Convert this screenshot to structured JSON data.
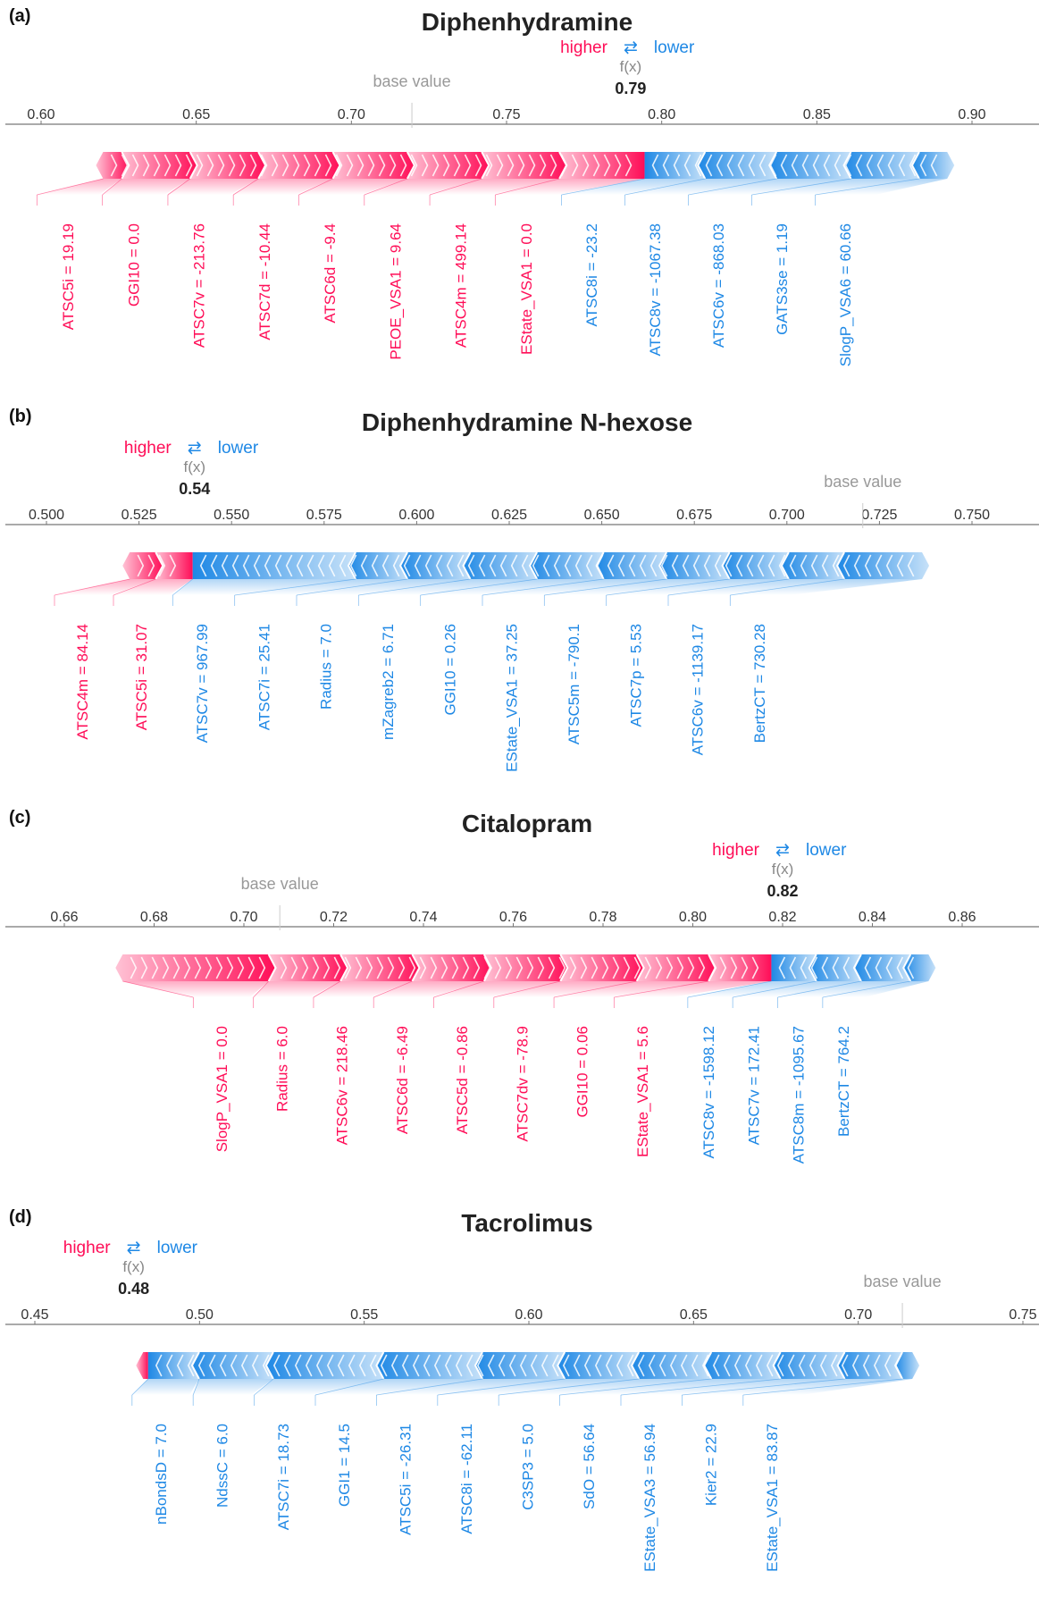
{
  "colors": {
    "pos": "#ff0d57",
    "neg": "#1e88e5",
    "pos_light": "#ffc3d5",
    "neg_light": "#d1e6fa"
  },
  "legend": {
    "higher": "higher",
    "arrow": "⇄",
    "lower": "lower",
    "fx": "f(x)",
    "base": "base value"
  },
  "chart_data": [
    {
      "type": "force",
      "panel": "(a)",
      "title": "Diphenhydramine",
      "fx": 0.79,
      "fx_label": "0.79",
      "base_value": 0.7195,
      "ticks": [
        "0.60",
        "0.65",
        "0.70",
        "0.75",
        "0.80",
        "0.85",
        "0.90"
      ],
      "xlim": [
        0.6,
        0.9
      ],
      "positive": [
        {
          "label": "EState_VSA1 = 0.0",
          "lo": 0.767,
          "hi": 0.7945
        },
        {
          "label": "ATSC4m = 499.14",
          "lo": 0.742,
          "hi": 0.767
        },
        {
          "label": "PEOE_VSA1 = 9.64",
          "lo": 0.718,
          "hi": 0.742
        },
        {
          "label": "ATSC6d = -9.4",
          "lo": 0.694,
          "hi": 0.718
        },
        {
          "label": "ATSC7d = -10.44",
          "lo": 0.67,
          "hi": 0.694
        },
        {
          "label": "ATSC7v = -213.76",
          "lo": 0.648,
          "hi": 0.67
        },
        {
          "label": "GGI10 = 0.0",
          "lo": 0.626,
          "hi": 0.648
        },
        {
          "label": "ATSC5i = 19.19",
          "lo": 0.62,
          "hi": 0.626
        }
      ],
      "negative": [
        {
          "label": "ATSC8i = -23.2",
          "lo": 0.7945,
          "hi": 0.814
        },
        {
          "label": "ATSC8v = -1067.38",
          "lo": 0.814,
          "hi": 0.837
        },
        {
          "label": "ATSC6v = -868.03",
          "lo": 0.837,
          "hi": 0.861
        },
        {
          "label": "GATS3se = 1.19",
          "lo": 0.861,
          "hi": 0.883
        },
        {
          "label": "SlogP_VSA6 = 60.66",
          "lo": 0.883,
          "hi": 0.892
        }
      ]
    },
    {
      "type": "force",
      "panel": "(b)",
      "title": "Diphenhydramine N-hexose",
      "fx": 0.54,
      "fx_label": "0.54",
      "base_value": 0.7205,
      "ticks": [
        "0.500",
        "0.525",
        "0.550",
        "0.575",
        "0.600",
        "0.625",
        "0.650",
        "0.675",
        "0.700",
        "0.725",
        "0.750"
      ],
      "xlim": [
        0.5,
        0.75
      ],
      "positive": [
        {
          "label": "ATSC5i = 31.07",
          "lo": 0.5295,
          "hi": 0.5395
        },
        {
          "label": "ATSC4m = 84.14",
          "lo": 0.5225,
          "hi": 0.5295
        }
      ],
      "negative": [
        {
          "label": "ATSC7v = 967.99",
          "lo": 0.5395,
          "hi": 0.5835
        },
        {
          "label": "ATSC7i = 25.41",
          "lo": 0.5835,
          "hi": 0.5975
        },
        {
          "label": "Radius = 7.0",
          "lo": 0.5975,
          "hi": 0.6145
        },
        {
          "label": "mZagreb2 = 6.71",
          "lo": 0.6145,
          "hi": 0.6325
        },
        {
          "label": "GGI10 = 0.26",
          "lo": 0.6325,
          "hi": 0.6505
        },
        {
          "label": "EState_VSA1 = 37.25",
          "lo": 0.6505,
          "hi": 0.6675
        },
        {
          "label": "ATSC5m = -790.1",
          "lo": 0.6675,
          "hi": 0.6845
        },
        {
          "label": "ATSC7p = 5.53",
          "lo": 0.6845,
          "hi": 0.7005
        },
        {
          "label": "ATSC6v = -1139.17",
          "lo": 0.7005,
          "hi": 0.7155
        },
        {
          "label": "BertzCT = 730.28",
          "lo": 0.7155,
          "hi": 0.7365
        }
      ]
    },
    {
      "type": "force",
      "panel": "(c)",
      "title": "Citalopram",
      "fx": 0.82,
      "fx_label": "0.82",
      "base_value": 0.708,
      "ticks": [
        "0.66",
        "0.68",
        "0.70",
        "0.72",
        "0.74",
        "0.76",
        "0.78",
        "0.80",
        "0.82",
        "0.84",
        "0.86"
      ],
      "xlim": [
        0.66,
        0.86
      ],
      "positive": [
        {
          "label": "EState_VSA1 = 5.6",
          "lo": 0.8035,
          "hi": 0.8175
        },
        {
          "label": "GGI10 = 0.06",
          "lo": 0.7875,
          "hi": 0.8035
        },
        {
          "label": "ATSC7dv = -78.9",
          "lo": 0.7705,
          "hi": 0.7875
        },
        {
          "label": "ATSC5d = -0.86",
          "lo": 0.7535,
          "hi": 0.7705
        },
        {
          "label": "ATSC6d = -6.49",
          "lo": 0.7375,
          "hi": 0.7535
        },
        {
          "label": "ATSC6v = 218.46",
          "lo": 0.7215,
          "hi": 0.7375
        },
        {
          "label": "Radius = 6.0",
          "lo": 0.7055,
          "hi": 0.7215
        },
        {
          "label": "SlogP_VSA1 = 0.0",
          "lo": 0.673,
          "hi": 0.7055
        }
      ],
      "negative": [
        {
          "label": "ATSC8v = -1598.12",
          "lo": 0.8175,
          "hi": 0.8275
        },
        {
          "label": "ATSC7v = 172.41",
          "lo": 0.8275,
          "hi": 0.8375
        },
        {
          "label": "ATSC8m = -1095.67",
          "lo": 0.8375,
          "hi": 0.8485
        },
        {
          "label": "BertzCT = 764.2",
          "lo": 0.8485,
          "hi": 0.8525
        }
      ]
    },
    {
      "type": "force",
      "panel": "(d)",
      "title": "Tacrolimus",
      "fx": 0.48,
      "fx_label": "0.48",
      "base_value": 0.7134,
      "ticks": [
        "0.45",
        "0.50",
        "0.55",
        "0.60",
        "0.65",
        "0.70",
        "0.75"
      ],
      "xlim": [
        0.45,
        0.75
      ],
      "positive": [
        {
          "label": "",
          "lo": 0.4829,
          "hi": 0.4844
        }
      ],
      "negative": [
        {
          "label": "nBondsD = 7.0",
          "lo": 0.4844,
          "hi": 0.4999
        },
        {
          "label": "NdssC = 6.0",
          "lo": 0.4999,
          "hi": 0.5224
        },
        {
          "label": "ATSC7i = 18.73",
          "lo": 0.5224,
          "hi": 0.5559
        },
        {
          "label": "GGI1 = 14.5",
          "lo": 0.5559,
          "hi": 0.5859
        },
        {
          "label": "ATSC5i = -26.31",
          "lo": 0.5859,
          "hi": 0.6109
        },
        {
          "label": "ATSC8i = -62.11",
          "lo": 0.6109,
          "hi": 0.6334
        },
        {
          "label": "C3SP3 = 5.0",
          "lo": 0.6334,
          "hi": 0.6554
        },
        {
          "label": "SdO = 56.64",
          "lo": 0.6554,
          "hi": 0.6764
        },
        {
          "label": "EState_VSA3 = 56.94",
          "lo": 0.6764,
          "hi": 0.6959
        },
        {
          "label": "Kier2 = 22.9",
          "lo": 0.6959,
          "hi": 0.7134
        },
        {
          "label": "EState_VSA1 = 83.87",
          "lo": 0.7134,
          "hi": 0.7164
        }
      ]
    }
  ]
}
